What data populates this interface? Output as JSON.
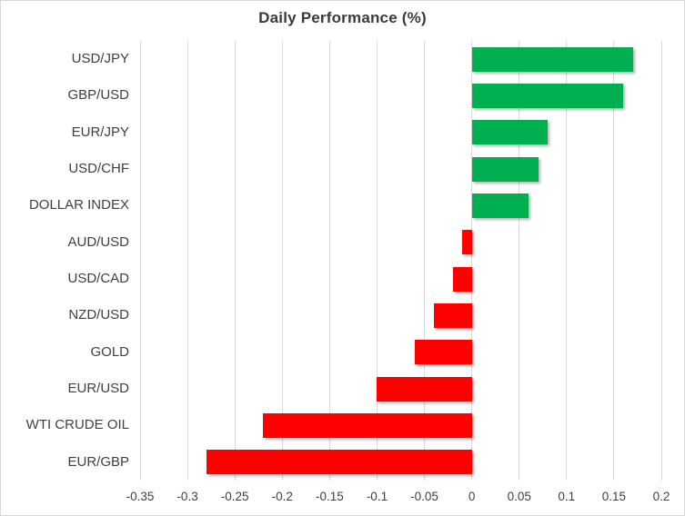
{
  "chart_data": {
    "type": "bar",
    "orientation": "horizontal",
    "title": "Daily Performance (%)",
    "categories": [
      "USD/JPY",
      "GBP/USD",
      "EUR/JPY",
      "USD/CHF",
      "DOLLAR INDEX",
      "AUD/USD",
      "USD/CAD",
      "NZD/USD",
      "GOLD",
      "EUR/USD",
      "WTI CRUDE OIL",
      "EUR/GBP"
    ],
    "values": [
      0.17,
      0.16,
      0.08,
      0.07,
      0.06,
      -0.01,
      -0.02,
      -0.04,
      -0.06,
      -0.1,
      -0.22,
      -0.28
    ],
    "xlabel": "",
    "ylabel": "",
    "xlim": [
      -0.35,
      0.2
    ],
    "x_ticks": [
      -0.35,
      -0.3,
      -0.25,
      -0.2,
      -0.15,
      -0.1,
      -0.05,
      0,
      0.05,
      0.1,
      0.15,
      0.2
    ],
    "x_tick_labels": [
      "-0.35",
      "-0.3",
      "-0.25",
      "-0.2",
      "-0.15",
      "-0.1",
      "-0.05",
      "0",
      "0.05",
      "0.1",
      "0.15",
      "0.2"
    ],
    "grid": "vertical",
    "legend": "none",
    "colors": {
      "positive": "#00B050",
      "negative": "#FF0000",
      "gridline": "#D9D9D9",
      "axis_label": "#404040",
      "title": "#3B3B3B",
      "border": "#D9D9D9",
      "background": "#FFFFFF"
    }
  }
}
